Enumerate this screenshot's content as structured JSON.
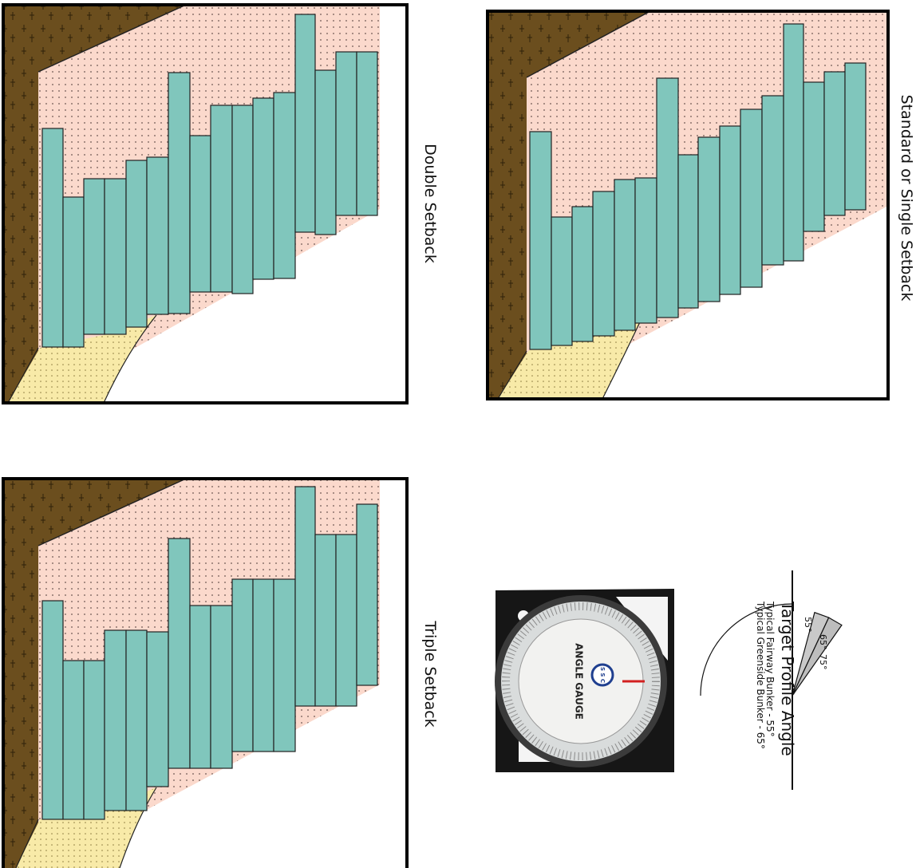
{
  "panels": {
    "standard": {
      "title": "Standard or Single Setback"
    },
    "double": {
      "title": "Double Setback"
    },
    "triple": {
      "title": "Triple Setback"
    }
  },
  "target_profile": {
    "title": "Target Profile Angle",
    "fairway": "Typical Fairway Bunker - 55°",
    "greenside": "Typical Greenside Bunker - 65°",
    "angle_labels": [
      "55°",
      "65°",
      "75°"
    ]
  },
  "gauge": {
    "face_text": "ANGLE GAUGE",
    "logo_text": "S S C"
  },
  "colors": {
    "soil": "#6b4e1e",
    "rootzone": "#fbd9cc",
    "sod": "#80c6bc",
    "sand": "#f8eaa8",
    "wedge": "#c9c9c9"
  }
}
